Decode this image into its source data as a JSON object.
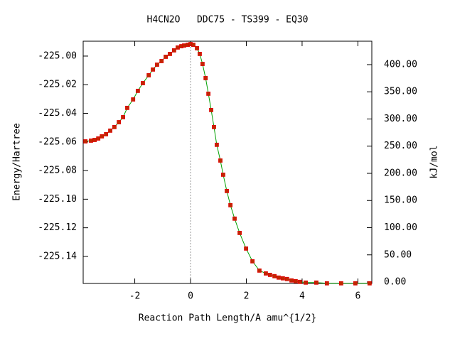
{
  "chart_data": {
    "type": "line",
    "title": "H4CN2O   DDC75 - TS399 - EQ30",
    "x_label": "Reaction Path Length/A amu^{1/2}",
    "y_label": "Energy/Hartree",
    "y2_label": "kJ/mol",
    "x": [
      -3.77,
      -3.57,
      -3.44,
      -3.31,
      -3.18,
      -3.03,
      -2.88,
      -2.73,
      -2.57,
      -2.42,
      -2.27,
      -2.06,
      -1.89,
      -1.71,
      -1.5,
      -1.35,
      -1.2,
      -1.04,
      -0.89,
      -0.74,
      -0.59,
      -0.46,
      -0.33,
      -0.23,
      -0.1,
      0.0,
      0.1,
      0.23,
      0.33,
      0.43,
      0.54,
      0.64,
      0.74,
      0.84,
      0.94,
      1.07,
      1.17,
      1.3,
      1.43,
      1.58,
      1.76,
      1.99,
      2.22,
      2.47,
      2.7,
      2.85,
      3.01,
      3.16,
      3.31,
      3.46,
      3.62,
      3.77,
      3.92,
      4.13,
      4.51,
      4.89,
      5.4,
      5.91,
      6.42
    ],
    "series": [
      {
        "color": "#00a000",
        "marker_color": "#c02800",
        "values": [
          -225.0596,
          -225.0591,
          -225.0586,
          -225.0576,
          -225.0561,
          -225.0546,
          -225.0521,
          -225.0496,
          -225.0462,
          -225.0427,
          -225.0362,
          -225.0303,
          -225.0243,
          -225.0189,
          -225.0134,
          -225.0094,
          -225.006,
          -225.0035,
          -225.0005,
          -224.9985,
          -224.996,
          -224.994,
          -224.9931,
          -224.9926,
          -224.9921,
          -224.9916,
          -224.9921,
          -224.9945,
          -224.9985,
          -225.0055,
          -225.0154,
          -225.0263,
          -225.0377,
          -225.0496,
          -225.062,
          -225.073,
          -225.0829,
          -225.0943,
          -225.1042,
          -225.1136,
          -225.1236,
          -225.1345,
          -225.1434,
          -225.1499,
          -225.1519,
          -225.1529,
          -225.1538,
          -225.1548,
          -225.1553,
          -225.1558,
          -225.1568,
          -225.1573,
          -225.1578,
          -225.1583,
          -225.1583,
          -225.1588,
          -225.1588,
          -225.1588,
          -225.1588
        ]
      }
    ],
    "xlim": [
      -3.85,
      6.5
    ],
    "xticks": [
      -2,
      0,
      2,
      4,
      6
    ],
    "ylim": [
      -225.1589,
      -224.9896
    ],
    "yticks": [
      {
        "value": -225.14,
        "label": "-225.14"
      },
      {
        "value": -225.12,
        "label": "-225.12"
      },
      {
        "value": -225.1,
        "label": "-225.10"
      },
      {
        "value": -225.08,
        "label": "-225.08"
      },
      {
        "value": -225.06,
        "label": "-225.06"
      },
      {
        "value": -225.04,
        "label": "-225.04"
      },
      {
        "value": -225.02,
        "label": "-225.02"
      },
      {
        "value": -225.0,
        "label": "-225.00"
      }
    ],
    "y2lim": [
      -2.6,
      443.1
    ],
    "y2ticks": [
      {
        "value": 0,
        "label": "0.00"
      },
      {
        "value": 50,
        "label": "50.00"
      },
      {
        "value": 100,
        "label": "100.00"
      },
      {
        "value": 150,
        "label": "150.00"
      },
      {
        "value": 200,
        "label": "200.00"
      },
      {
        "value": 250,
        "label": "250.00"
      },
      {
        "value": 300,
        "label": "300.00"
      },
      {
        "value": 350,
        "label": "350.00"
      },
      {
        "value": 400,
        "label": "400.00"
      }
    ],
    "vline_x": 0
  }
}
